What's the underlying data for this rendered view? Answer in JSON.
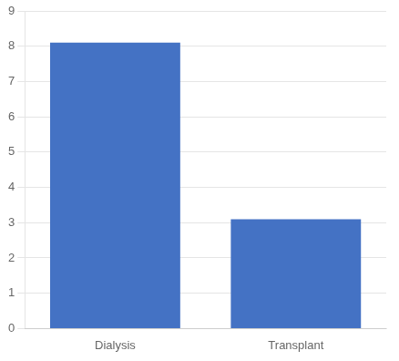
{
  "chart_data": {
    "type": "bar",
    "categories": [
      "Dialysis",
      "Transplant"
    ],
    "values": [
      8.1,
      3.1
    ],
    "color": "#4472C4",
    "ylim": [
      0,
      9
    ],
    "yticks": [
      0,
      1,
      2,
      3,
      4,
      5,
      6,
      7,
      8,
      9
    ],
    "grid": true
  }
}
